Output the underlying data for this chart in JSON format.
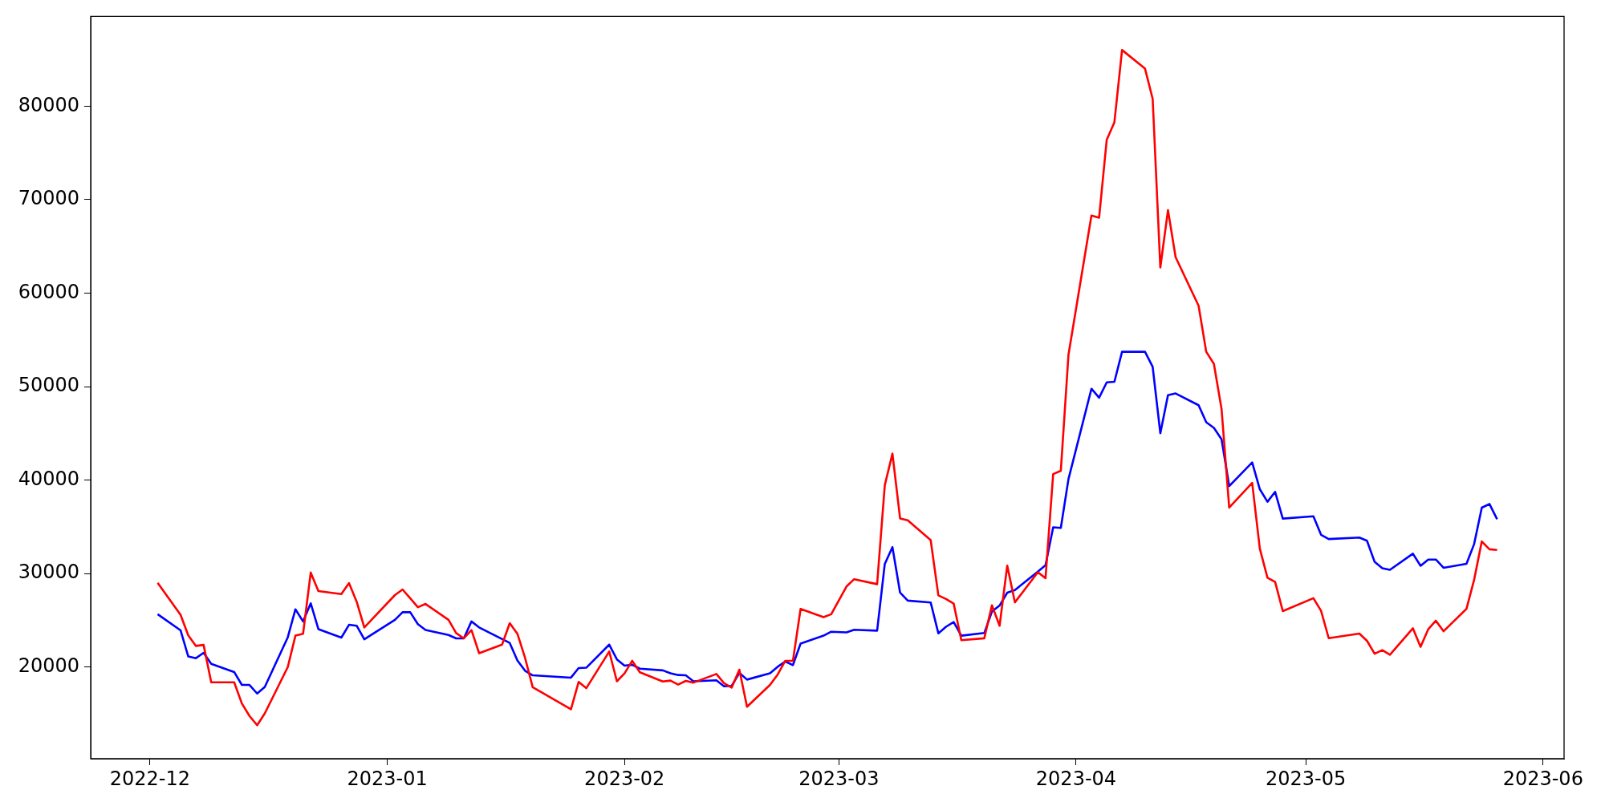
{
  "chart_data": {
    "type": "line",
    "xlim": [
      "2022-11-23T06:00",
      "2023-06-03T18:00"
    ],
    "xticks": [
      {
        "value": "2022-12-01",
        "label": "2022-12"
      },
      {
        "value": "2023-01-01",
        "label": "2023-01"
      },
      {
        "value": "2023-02-01",
        "label": "2023-02"
      },
      {
        "value": "2023-03-01",
        "label": "2023-03"
      },
      {
        "value": "2023-04-01",
        "label": "2023-04"
      },
      {
        "value": "2023-05-01",
        "label": "2023-05"
      },
      {
        "value": "2023-06-01",
        "label": "2023-06"
      }
    ],
    "ylim": [
      10200,
      89600
    ],
    "yticks": [
      20000,
      30000,
      40000,
      50000,
      60000,
      70000,
      80000
    ],
    "series": [
      {
        "color": "#ff0000",
        "x": [
          "2022-12-02",
          "2022-12-05",
          "2022-12-06",
          "2022-12-07",
          "2022-12-08",
          "2022-12-09",
          "2022-12-12",
          "2022-12-13",
          "2022-12-14",
          "2022-12-15",
          "2022-12-16",
          "2022-12-19",
          "2022-12-20",
          "2022-12-21",
          "2022-12-22",
          "2022-12-23",
          "2022-12-26",
          "2022-12-27",
          "2022-12-28",
          "2022-12-29",
          "2023-01-02",
          "2023-01-03",
          "2023-01-05",
          "2023-01-06",
          "2023-01-09",
          "2023-01-10",
          "2023-01-11",
          "2023-01-12",
          "2023-01-13",
          "2023-01-16",
          "2023-01-17",
          "2023-01-18",
          "2023-01-19",
          "2023-01-20",
          "2023-01-25",
          "2023-01-26",
          "2023-01-27",
          "2023-01-30",
          "2023-01-31",
          "2023-02-01",
          "2023-02-02",
          "2023-02-03",
          "2023-02-06",
          "2023-02-07",
          "2023-02-08",
          "2023-02-09",
          "2023-02-10",
          "2023-02-13",
          "2023-02-14",
          "2023-02-15",
          "2023-02-16",
          "2023-02-17",
          "2023-02-20",
          "2023-02-21",
          "2023-02-22",
          "2023-02-23",
          "2023-02-24",
          "2023-02-27",
          "2023-02-28",
          "2023-03-02",
          "2023-03-03",
          "2023-03-06",
          "2023-03-07",
          "2023-03-08",
          "2023-03-09",
          "2023-03-10",
          "2023-03-13",
          "2023-03-14",
          "2023-03-15",
          "2023-03-16",
          "2023-03-17",
          "2023-03-20",
          "2023-03-21",
          "2023-03-22",
          "2023-03-23",
          "2023-03-24",
          "2023-03-27",
          "2023-03-28",
          "2023-03-29",
          "2023-03-30",
          "2023-03-31",
          "2023-04-03",
          "2023-04-04",
          "2023-04-05",
          "2023-04-06",
          "2023-04-07",
          "2023-04-10",
          "2023-04-11",
          "2023-04-12",
          "2023-04-13",
          "2023-04-14",
          "2023-04-17",
          "2023-04-18",
          "2023-04-19",
          "2023-04-20",
          "2023-04-21",
          "2023-04-24",
          "2023-04-25",
          "2023-04-26",
          "2023-04-27",
          "2023-04-28",
          "2023-05-02",
          "2023-05-03",
          "2023-05-04",
          "2023-05-08",
          "2023-05-09",
          "2023-05-10",
          "2023-05-11",
          "2023-05-12",
          "2023-05-15",
          "2023-05-16",
          "2023-05-17",
          "2023-05-18",
          "2023-05-19",
          "2023-05-22",
          "2023-05-23",
          "2023-05-24",
          "2023-05-25",
          "2023-05-26"
        ],
        "values": [
          29010,
          25580,
          23390,
          22260,
          22370,
          18370,
          18370,
          16110,
          14770,
          13780,
          15050,
          20000,
          23360,
          23570,
          30110,
          28130,
          27810,
          28980,
          27000,
          24240,
          27700,
          28300,
          26400,
          26750,
          25050,
          23640,
          23070,
          23960,
          21480,
          22400,
          24700,
          23570,
          20990,
          17840,
          15480,
          18410,
          17740,
          21660,
          18480,
          19330,
          20670,
          19440,
          18450,
          18550,
          18130,
          18520,
          18340,
          19260,
          18270,
          17810,
          19720,
          15760,
          18090,
          19190,
          20670,
          20670,
          26220,
          25340,
          25650,
          28620,
          29400,
          28870,
          39440,
          42830,
          35900,
          35690,
          33570,
          27670,
          27280,
          26790,
          22870,
          23080,
          26610,
          24420,
          30850,
          26920,
          30140,
          29510,
          40640,
          41000,
          53410,
          68300,
          68070,
          76410,
          78270,
          86000,
          84010,
          80780,
          62740,
          68870,
          63840,
          58640,
          53720,
          52430,
          47600,
          37060,
          39700,
          32670,
          29560,
          29100,
          25990,
          27370,
          26020,
          23090,
          23580,
          22810,
          21430,
          21810,
          21320,
          24150,
          22170,
          24040,
          24960,
          23830,
          26230,
          29340,
          33440,
          32600,
          32530
        ]
      },
      {
        "color": "#0000ff",
        "x": [
          "2022-12-02",
          "2022-12-05",
          "2022-12-06",
          "2022-12-07",
          "2022-12-08",
          "2022-12-09",
          "2022-12-12",
          "2022-12-13",
          "2022-12-14",
          "2022-12-15",
          "2022-12-16",
          "2022-12-19",
          "2022-12-20",
          "2022-12-21",
          "2022-12-22",
          "2022-12-23",
          "2022-12-26",
          "2022-12-27",
          "2022-12-28",
          "2022-12-29",
          "2023-01-02",
          "2023-01-03",
          "2023-01-04",
          "2023-01-05",
          "2023-01-06",
          "2023-01-09",
          "2023-01-10",
          "2023-01-11",
          "2023-01-12",
          "2023-01-13",
          "2023-01-17",
          "2023-01-18",
          "2023-01-19",
          "2023-01-20",
          "2023-01-25",
          "2023-01-26",
          "2023-01-27",
          "2023-01-30",
          "2023-01-31",
          "2023-02-01",
          "2023-02-02",
          "2023-02-03",
          "2023-02-06",
          "2023-02-07",
          "2023-02-08",
          "2023-02-09",
          "2023-02-10",
          "2023-02-13",
          "2023-02-14",
          "2023-02-15",
          "2023-02-16",
          "2023-02-17",
          "2023-02-20",
          "2023-02-21",
          "2023-02-22",
          "2023-02-23",
          "2023-02-24",
          "2023-02-27",
          "2023-02-28",
          "2023-03-02",
          "2023-03-03",
          "2023-03-06",
          "2023-03-07",
          "2023-03-08",
          "2023-03-09",
          "2023-03-10",
          "2023-03-13",
          "2023-03-14",
          "2023-03-15",
          "2023-03-16",
          "2023-03-17",
          "2023-03-20",
          "2023-03-21",
          "2023-03-22",
          "2023-03-23",
          "2023-03-24",
          "2023-03-27",
          "2023-03-28",
          "2023-03-29",
          "2023-03-30",
          "2023-03-31",
          "2023-04-03",
          "2023-04-04",
          "2023-04-05",
          "2023-04-06",
          "2023-04-07",
          "2023-04-10",
          "2023-04-11",
          "2023-04-12",
          "2023-04-13",
          "2023-04-14",
          "2023-04-17",
          "2023-04-18",
          "2023-04-19",
          "2023-04-20",
          "2023-04-21",
          "2023-04-24",
          "2023-04-25",
          "2023-04-26",
          "2023-04-27",
          "2023-04-28",
          "2023-05-02",
          "2023-05-03",
          "2023-05-04",
          "2023-05-08",
          "2023-05-09",
          "2023-05-10",
          "2023-05-11",
          "2023-05-12",
          "2023-05-15",
          "2023-05-16",
          "2023-05-17",
          "2023-05-18",
          "2023-05-19",
          "2023-05-22",
          "2023-05-23",
          "2023-05-24",
          "2023-05-25",
          "2023-05-26"
        ],
        "values": [
          25650,
          23920,
          21130,
          20950,
          21520,
          20350,
          19470,
          18090,
          18090,
          17170,
          17880,
          23180,
          26180,
          24880,
          26820,
          24060,
          23150,
          24520,
          24420,
          22970,
          25050,
          25870,
          25870,
          24590,
          23960,
          23430,
          23070,
          23070,
          24880,
          24240,
          22580,
          20710,
          19610,
          19120,
          18870,
          19890,
          19930,
          22400,
          20820,
          20150,
          20250,
          19830,
          19650,
          19330,
          19150,
          19120,
          18480,
          18590,
          17950,
          17990,
          19370,
          18660,
          19330,
          20030,
          20600,
          20210,
          22510,
          23360,
          23780,
          23710,
          23990,
          23890,
          31030,
          32830,
          27960,
          27110,
          26900,
          23610,
          24310,
          24810,
          23360,
          23640,
          25940,
          26580,
          27960,
          28240,
          30210,
          30890,
          34950,
          34880,
          40110,
          49770,
          48810,
          50450,
          50520,
          53720,
          53720,
          52120,
          45010,
          49080,
          49270,
          48010,
          46190,
          45580,
          44360,
          39360,
          41890,
          39020,
          37680,
          38740,
          35880,
          36130,
          34150,
          33690,
          33860,
          33510,
          31250,
          30580,
          30400,
          32130,
          30830,
          31500,
          31500,
          30620,
          31040,
          33160,
          37050,
          37440,
          35810
        ]
      }
    ]
  }
}
